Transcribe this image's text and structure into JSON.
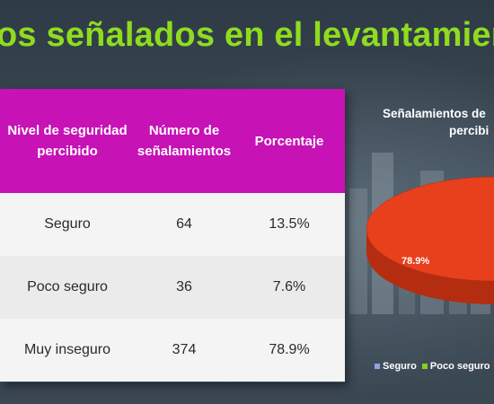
{
  "title": "os señalados en el levantamien",
  "table": {
    "headers": [
      "Nivel de seguridad percibido",
      "Número de señalamientos",
      "Porcentaje"
    ],
    "rows": [
      {
        "level": "Seguro",
        "count": "64",
        "pct": "13.5%"
      },
      {
        "level": "Poco seguro",
        "count": "36",
        "pct": "7.6%"
      },
      {
        "level": "Muy inseguro",
        "count": "374",
        "pct": "78.9%"
      }
    ]
  },
  "chart_data": {
    "type": "pie",
    "title_line1": "Señalamientos de",
    "title_line2": "percibi",
    "categories": [
      "Seguro",
      "Poco seguro",
      "Muy inseguro"
    ],
    "values": [
      13.5,
      7.6,
      78.9
    ],
    "colors": [
      "#8fa3e8",
      "#7ed321",
      "#e8401c"
    ],
    "data_labels": [
      "",
      "",
      "78.9%"
    ],
    "legend": [
      "Seguro",
      "Poco seguro"
    ],
    "legend_placement": "bottom"
  },
  "colors": {
    "title": "#8fdc1f",
    "header": "#c712b6",
    "background": "#3d4b58"
  }
}
